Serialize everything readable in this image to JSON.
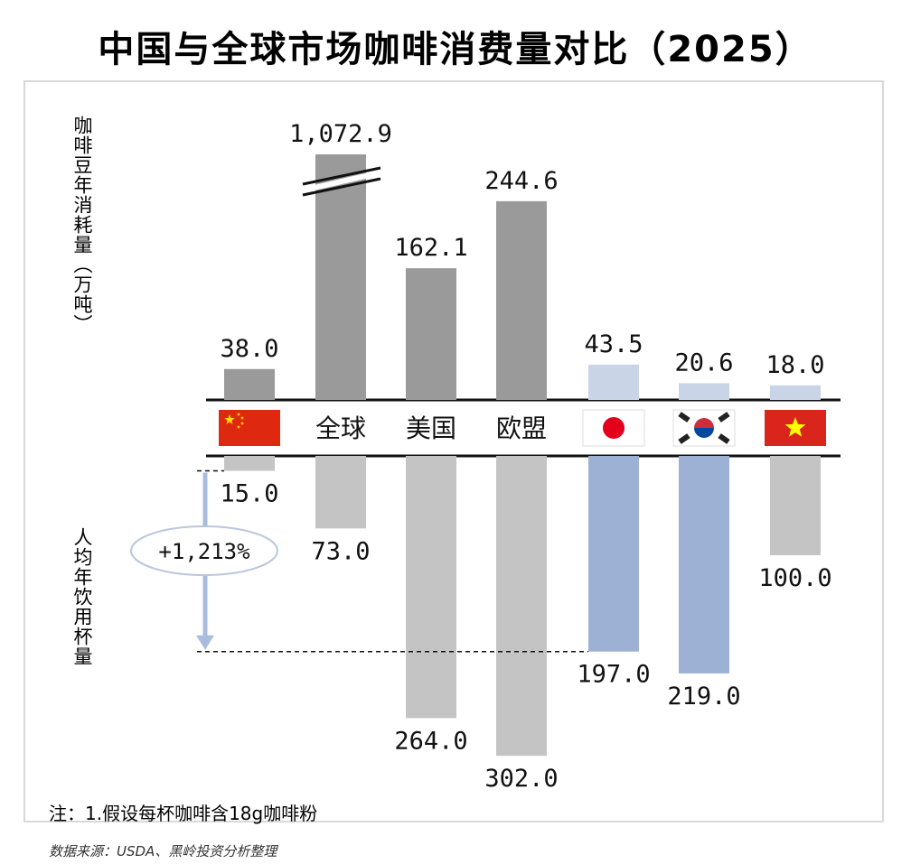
{
  "title": "中国与全球市场咖啡消费量对比（2025）",
  "upper_axis_label": "咖啡豆年消耗量（万吨）",
  "lower_axis_label": "人均年饮用杯量",
  "growth_bubble": "+1,213%",
  "footnote": "注：1.假设每杯咖啡含18g咖啡粉",
  "source": "数据来源：USDA、黑岭投资分析整理",
  "colors": {
    "gray_dark": "#9a9a9a",
    "gray_light": "#c4c4c4",
    "blue_light": "#c9d5e6",
    "blue_mid": "#9cb1d3",
    "arrow": "#a8bcdc"
  },
  "chart_data": {
    "type": "bar",
    "categories": [
      "中国",
      "全球",
      "美国",
      "欧盟",
      "日本",
      "韩国",
      "越南"
    ],
    "category_display": [
      {
        "kind": "flag",
        "icon": "china-flag-icon"
      },
      {
        "kind": "text",
        "label": "全球"
      },
      {
        "kind": "text",
        "label": "美国"
      },
      {
        "kind": "text",
        "label": "欧盟"
      },
      {
        "kind": "flag",
        "icon": "japan-flag-icon"
      },
      {
        "kind": "flag",
        "icon": "korea-flag-icon"
      },
      {
        "kind": "flag",
        "icon": "vietnam-flag-icon"
      }
    ],
    "series": [
      {
        "values": [
          38.0,
          1072.9,
          162.1,
          244.6,
          43.5,
          20.6,
          18.0
        ],
        "labels": [
          "38.0",
          "1,072.9",
          "162.1",
          "244.6",
          "43.5",
          "20.6",
          "18.0"
        ],
        "axis_break_on": "全球"
      },
      {
        "values": [
          15.0,
          73.0,
          264.0,
          302.0,
          197.0,
          219.0,
          100.0
        ],
        "labels": [
          "15.0",
          "73.0",
          "264.0",
          "302.0",
          "197.0",
          "219.0",
          "100.0"
        ]
      }
    ],
    "bar_colors_upper": [
      "gray_dark",
      "gray_dark",
      "gray_dark",
      "gray_dark",
      "blue_light",
      "blue_light",
      "blue_light"
    ],
    "bar_colors_lower": [
      "gray_light",
      "gray_light",
      "gray_light",
      "gray_light",
      "blue_mid",
      "blue_mid",
      "gray_light"
    ],
    "annotation": {
      "text": "+1,213%",
      "from": "中国",
      "to": "日本",
      "series": 1
    },
    "grid": false,
    "legend": "none"
  }
}
